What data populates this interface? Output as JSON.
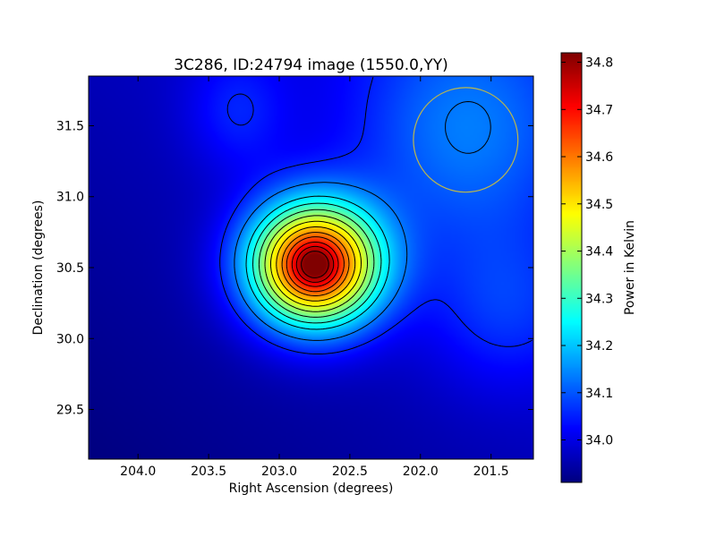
{
  "chart_data": {
    "type": "heatmap",
    "title": "3C286, ID:24794 image (1550.0,YY)",
    "xlabel": "Right Ascension (degrees)",
    "ylabel": "Declination (degrees)",
    "xlim": [
      204.35,
      201.2
    ],
    "ylim": [
      29.15,
      31.85
    ],
    "xticks": [
      204.0,
      203.5,
      203.0,
      202.5,
      202.0,
      201.5
    ],
    "xtick_labels": [
      "204.0",
      "203.5",
      "203.0",
      "202.5",
      "202.0",
      "201.5"
    ],
    "yticks": [
      29.5,
      30.0,
      30.5,
      31.0,
      31.5
    ],
    "ytick_labels": [
      "29.5",
      "30.0",
      "30.5",
      "31.0",
      "31.5"
    ],
    "colormap": "jet",
    "peak": {
      "ra": 202.75,
      "dec": 30.52,
      "value": 34.81
    },
    "beam": {
      "ra": 201.68,
      "dec": 31.4,
      "radius_deg": 0.37,
      "color": "#bdb84a"
    },
    "colorbar": {
      "label": "Power in Kelvin",
      "range": [
        33.91,
        34.82
      ],
      "ticks": [
        34.0,
        34.1,
        34.2,
        34.3,
        34.4,
        34.5,
        34.6,
        34.7,
        34.8
      ],
      "tick_labels": [
        "34.0",
        "34.1",
        "34.2",
        "34.3",
        "34.4",
        "34.5",
        "34.6",
        "34.7",
        "34.8"
      ]
    },
    "contour_levels": [
      34.05,
      34.13,
      34.22,
      34.28,
      34.34,
      34.4,
      34.46,
      34.52,
      34.58,
      34.63,
      34.69,
      34.74,
      34.79
    ],
    "contour_color": "#000000"
  }
}
